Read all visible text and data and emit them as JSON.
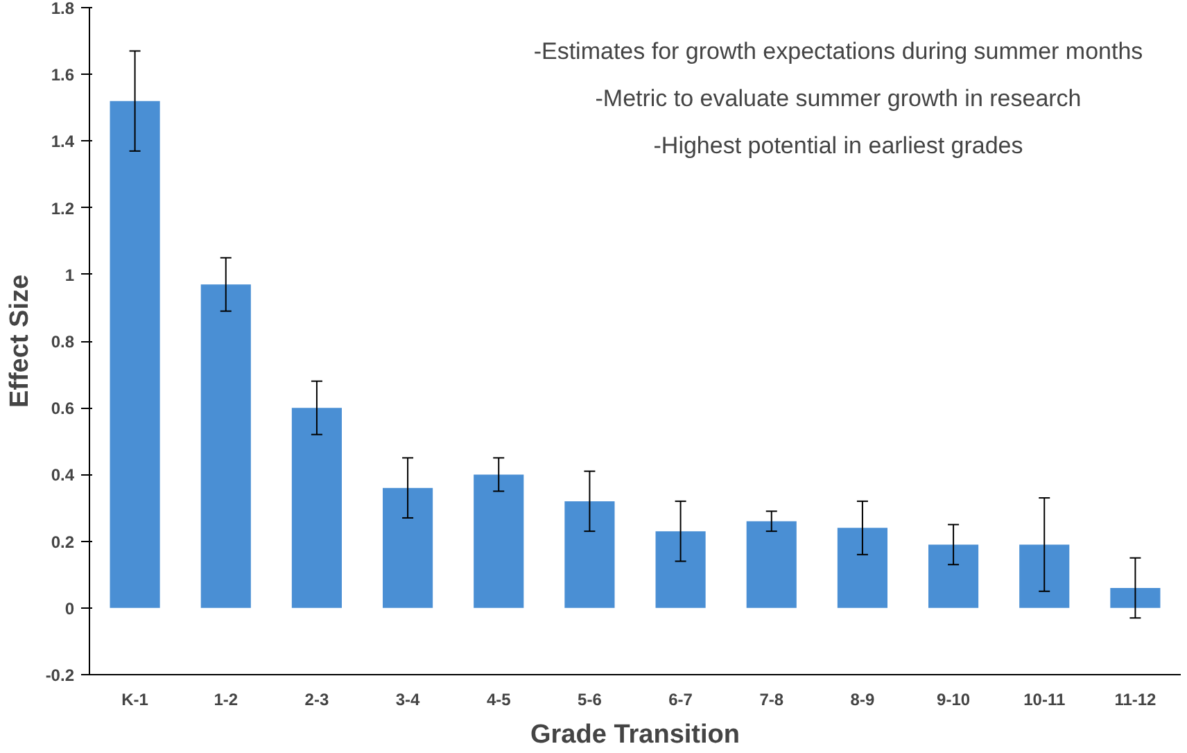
{
  "chart_data": {
    "type": "bar",
    "xlabel": "Grade Transition",
    "ylabel": "Effect Size",
    "categories": [
      "K-1",
      "1-2",
      "2-3",
      "3-4",
      "4-5",
      "5-6",
      "6-7",
      "7-8",
      "8-9",
      "9-10",
      "10-11",
      "11-12"
    ],
    "values": [
      1.52,
      0.97,
      0.6,
      0.36,
      0.4,
      0.32,
      0.23,
      0.26,
      0.24,
      0.19,
      0.19,
      0.06
    ],
    "errors": [
      0.15,
      0.08,
      0.08,
      0.09,
      0.05,
      0.09,
      0.09,
      0.03,
      0.08,
      0.06,
      0.14,
      0.09
    ],
    "color": "#4a8fd4",
    "ylim": [
      -0.2,
      1.8
    ],
    "yticks": [
      -0.2,
      0,
      0.2,
      0.4,
      0.6,
      0.8,
      1,
      1.2,
      1.4,
      1.6,
      1.8
    ],
    "annotations": [
      "-Estimates for growth expectations during summer months",
      "-Metric to evaluate summer growth in research",
      "-Highest potential in earliest grades"
    ],
    "grid": false
  }
}
